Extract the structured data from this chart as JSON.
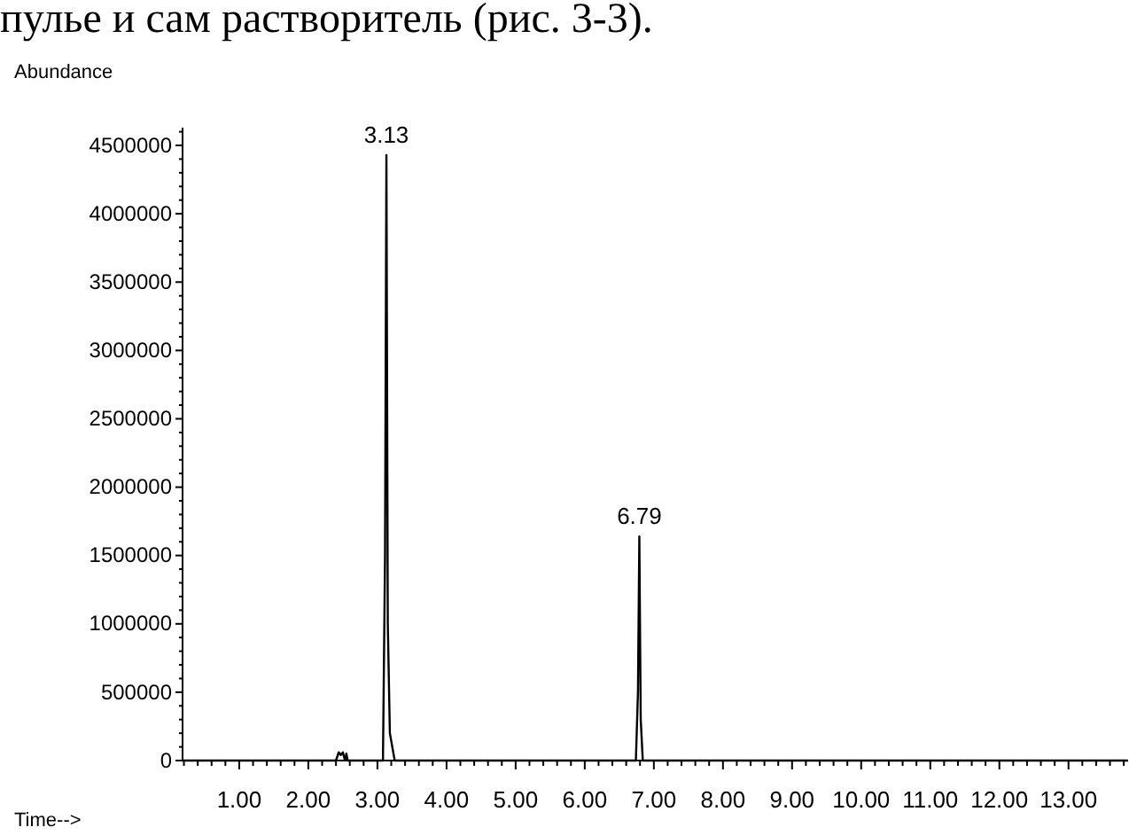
{
  "chart_data": {
    "type": "line",
    "ylabel": "Abundance",
    "xlabel": "Time-->",
    "annotations": [
      "пулье и сам растворитель (рис. 3-3).",
      {
        "text": "3.13",
        "x": 3.13,
        "y": 4430000
      },
      {
        "text": "6.79",
        "x": 6.79,
        "y": 1640000
      }
    ],
    "series": [
      {
        "color": "#000000",
        "x": [
          0.18,
          2.4,
          2.44,
          2.47,
          2.5,
          2.53,
          2.55,
          2.57,
          3.08,
          3.11,
          3.13,
          3.15,
          3.18,
          3.25,
          6.74,
          6.77,
          6.79,
          6.81,
          6.84,
          13.85
        ],
        "values": [
          0,
          0,
          60000,
          40000,
          60000,
          0,
          50000,
          0,
          0,
          1500000,
          4430000,
          1000000,
          200000,
          0,
          0,
          500000,
          1640000,
          300000,
          0,
          0
        ]
      }
    ],
    "xlim": [
      0.18,
      13.85
    ],
    "ylim": [
      0,
      4630000
    ],
    "xticks": [
      {
        "value": 0.2,
        "label": null
      },
      {
        "value": 0.4,
        "label": null
      },
      {
        "value": 0.6,
        "label": null
      },
      {
        "value": 0.8,
        "label": null
      },
      {
        "value": 1,
        "label": "1.00"
      },
      {
        "value": 1.2,
        "label": null
      },
      {
        "value": 1.4,
        "label": null
      },
      {
        "value": 1.6,
        "label": null
      },
      {
        "value": 1.8,
        "label": null
      },
      {
        "value": 2,
        "label": "2.00"
      },
      {
        "value": 2.2,
        "label": null
      },
      {
        "value": 2.4,
        "label": null
      },
      {
        "value": 2.6,
        "label": null
      },
      {
        "value": 2.8,
        "label": null
      },
      {
        "value": 3,
        "label": "3.00"
      },
      {
        "value": 3.2,
        "label": null
      },
      {
        "value": 3.4,
        "label": null
      },
      {
        "value": 3.6,
        "label": null
      },
      {
        "value": 3.8,
        "label": null
      },
      {
        "value": 4,
        "label": "4.00"
      },
      {
        "value": 4.2,
        "label": null
      },
      {
        "value": 4.4,
        "label": null
      },
      {
        "value": 4.6,
        "label": null
      },
      {
        "value": 4.8,
        "label": null
      },
      {
        "value": 5,
        "label": "5.00"
      },
      {
        "value": 5.2,
        "label": null
      },
      {
        "value": 5.4,
        "label": null
      },
      {
        "value": 5.6,
        "label": null
      },
      {
        "value": 5.8,
        "label": null
      },
      {
        "value": 6,
        "label": "6.00"
      },
      {
        "value": 6.2,
        "label": null
      },
      {
        "value": 6.4,
        "label": null
      },
      {
        "value": 6.6,
        "label": null
      },
      {
        "value": 6.8,
        "label": null
      },
      {
        "value": 7,
        "label": "7.00"
      },
      {
        "value": 7.2,
        "label": null
      },
      {
        "value": 7.4,
        "label": null
      },
      {
        "value": 7.6,
        "label": null
      },
      {
        "value": 7.8,
        "label": null
      },
      {
        "value": 8,
        "label": "8.00"
      },
      {
        "value": 8.2,
        "label": null
      },
      {
        "value": 8.4,
        "label": null
      },
      {
        "value": 8.6,
        "label": null
      },
      {
        "value": 8.8,
        "label": null
      },
      {
        "value": 9,
        "label": "9.00"
      },
      {
        "value": 9.2,
        "label": null
      },
      {
        "value": 9.4,
        "label": null
      },
      {
        "value": 9.6,
        "label": null
      },
      {
        "value": 9.8,
        "label": null
      },
      {
        "value": 10,
        "label": "10.00"
      },
      {
        "value": 10.2,
        "label": null
      },
      {
        "value": 10.4,
        "label": null
      },
      {
        "value": 10.6,
        "label": null
      },
      {
        "value": 10.8,
        "label": null
      },
      {
        "value": 11,
        "label": "11.00"
      },
      {
        "value": 11.2,
        "label": null
      },
      {
        "value": 11.4,
        "label": null
      },
      {
        "value": 11.6,
        "label": null
      },
      {
        "value": 11.8,
        "label": null
      },
      {
        "value": 12,
        "label": "12.00"
      },
      {
        "value": 12.2,
        "label": null
      },
      {
        "value": 12.4,
        "label": null
      },
      {
        "value": 12.6,
        "label": null
      },
      {
        "value": 12.8,
        "label": null
      },
      {
        "value": 13,
        "label": "13.00"
      },
      {
        "value": 13.2,
        "label": null
      },
      {
        "value": 13.4,
        "label": null
      },
      {
        "value": 13.6,
        "label": null
      },
      {
        "value": 13.8,
        "label": null
      }
    ],
    "yticks": [
      0,
      {
        "value": 100000,
        "label": null
      },
      {
        "value": 200000,
        "label": null
      },
      {
        "value": 300000,
        "label": null
      },
      {
        "value": 400000,
        "label": null
      },
      500000,
      {
        "value": 600000,
        "label": null
      },
      {
        "value": 700000,
        "label": null
      },
      {
        "value": 800000,
        "label": null
      },
      {
        "value": 900000,
        "label": null
      },
      1000000,
      {
        "value": 1100000,
        "label": null
      },
      {
        "value": 1200000,
        "label": null
      },
      {
        "value": 1300000,
        "label": null
      },
      {
        "value": 1400000,
        "label": null
      },
      1500000,
      {
        "value": 1600000,
        "label": null
      },
      {
        "value": 1700000,
        "label": null
      },
      {
        "value": 1800000,
        "label": null
      },
      {
        "value": 1900000,
        "label": null
      },
      2000000,
      {
        "value": 2100000,
        "label": null
      },
      {
        "value": 2200000,
        "label": null
      },
      {
        "value": 2300000,
        "label": null
      },
      {
        "value": 2400000,
        "label": null
      },
      2500000,
      {
        "value": 2600000,
        "label": null
      },
      {
        "value": 2700000,
        "label": null
      },
      {
        "value": 2800000,
        "label": null
      },
      {
        "value": 2900000,
        "label": null
      },
      3000000,
      {
        "value": 3100000,
        "label": null
      },
      {
        "value": 3200000,
        "label": null
      },
      {
        "value": 3300000,
        "label": null
      },
      {
        "value": 3400000,
        "label": null
      },
      3500000,
      {
        "value": 3600000,
        "label": null
      },
      {
        "value": 3700000,
        "label": null
      },
      {
        "value": 3800000,
        "label": null
      },
      {
        "value": 3900000,
        "label": null
      },
      4000000,
      {
        "value": 4100000,
        "label": null
      },
      {
        "value": 4200000,
        "label": null
      },
      {
        "value": 4300000,
        "label": null
      },
      {
        "value": 4400000,
        "label": null
      },
      4500000,
      {
        "value": 4600000,
        "label": null
      }
    ]
  }
}
